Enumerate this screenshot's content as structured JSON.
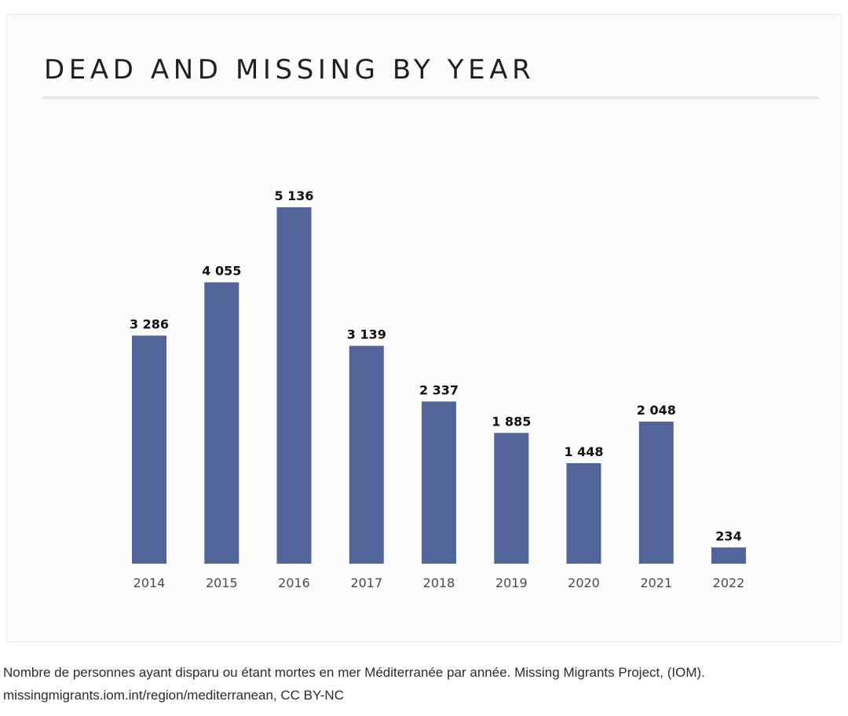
{
  "chart_data": {
    "type": "bar",
    "title": "DEAD AND MISSING BY YEAR",
    "categories": [
      "2014",
      "2015",
      "2016",
      "2017",
      "2018",
      "2019",
      "2020",
      "2021",
      "2022"
    ],
    "values": [
      3286,
      4055,
      5136,
      3139,
      2337,
      1885,
      1448,
      2048,
      234
    ],
    "data_labels": [
      "3 286",
      "4 055",
      "5 136",
      "3 139",
      "2 337",
      "1 885",
      "1 448",
      "2 048",
      "234"
    ],
    "xlabel": "",
    "ylabel": "",
    "ylim": [
      0,
      5136
    ],
    "grid": false,
    "legend": "none",
    "bar_color": "#51659b"
  },
  "caption": {
    "line1": "Nombre de personnes ayant disparu ou étant mortes en mer Méditerranée par année. Missing Migrants Project, (IOM).",
    "line2": "missingmigrants.iom.int/region/mediterranean, CC BY-NC"
  }
}
